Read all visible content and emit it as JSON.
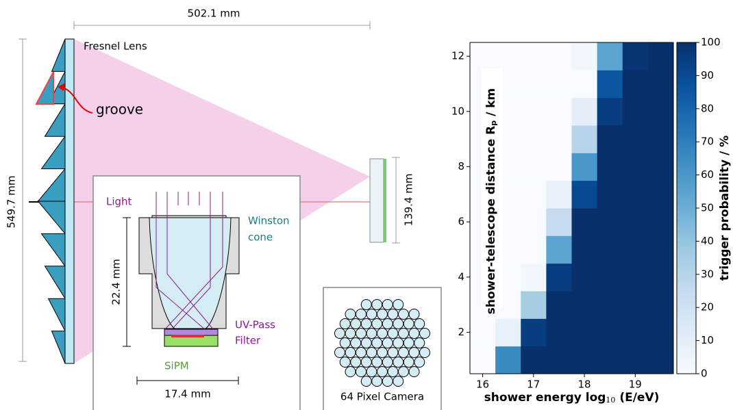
{
  "diagram": {
    "lens_width": "502.1 mm",
    "lens_name": "Fresnel Lens",
    "groove": "groove",
    "lens_height": "549.7 mm",
    "camera_height": "139.4 mm",
    "light": "Light",
    "cone_line1": "Winston",
    "cone_line2": "cone",
    "cone_height": "22.4 mm",
    "filter_line1": "UV-Pass",
    "filter_line2": "Filter",
    "sipm": "SiPM",
    "cone_width": "17.4 mm",
    "camera": "64 Pixel Camera"
  },
  "chart_data": {
    "type": "heatmap",
    "colormap": "Blues",
    "x_label": "shower energy log",
    "x_label_sub": "10",
    "x_label_end": " (E/eV)",
    "y_label": "shower-telescope distance R",
    "y_label_sub": "p",
    "y_label_end": " / km",
    "colorbar_label": "trigger probability / %",
    "x": [
      16,
      16.5,
      17,
      17.5,
      18,
      18.5,
      19,
      19.5
    ],
    "y": [
      1,
      2,
      3,
      4,
      5,
      6,
      7,
      8,
      9,
      10,
      11,
      12
    ],
    "z": [
      [
        0,
        65,
        100,
        100,
        100,
        100,
        100,
        100
      ],
      [
        0,
        8,
        95,
        100,
        100,
        100,
        100,
        100
      ],
      [
        0,
        0,
        35,
        100,
        100,
        100,
        100,
        100
      ],
      [
        0,
        0,
        3,
        95,
        100,
        100,
        100,
        100
      ],
      [
        0,
        0,
        0,
        55,
        100,
        100,
        100,
        100
      ],
      [
        0,
        0,
        0,
        25,
        100,
        100,
        100,
        100
      ],
      [
        0,
        0,
        0,
        8,
        90,
        100,
        100,
        100
      ],
      [
        0,
        0,
        0,
        0,
        60,
        100,
        100,
        100
      ],
      [
        0,
        0,
        0,
        0,
        30,
        100,
        100,
        100
      ],
      [
        0,
        0,
        0,
        0,
        10,
        95,
        100,
        100
      ],
      [
        0,
        0,
        0,
        0,
        0,
        85,
        100,
        100
      ],
      [
        0,
        0,
        0,
        0,
        3,
        55,
        98,
        100
      ]
    ],
    "xlim": [
      15.75,
      19.75
    ],
    "ylim": [
      0.5,
      12.5
    ],
    "xticks": [
      16,
      17,
      18,
      19
    ],
    "yticks": [
      2,
      4,
      6,
      8,
      10,
      12
    ],
    "zlim": [
      0,
      100
    ],
    "zticks": [
      0,
      10,
      20,
      30,
      40,
      50,
      60,
      70,
      80,
      90,
      100
    ]
  }
}
